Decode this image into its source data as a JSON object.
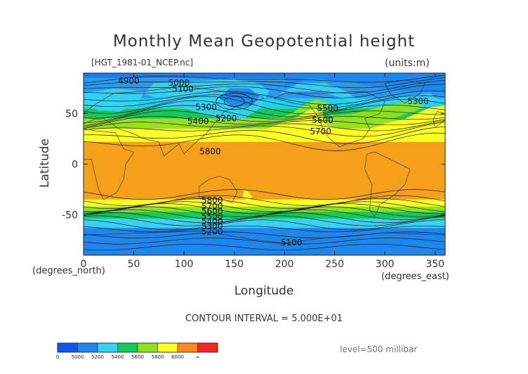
{
  "chart_data": {
    "type": "heatmap",
    "title": "Monthly Mean Geopotential height",
    "file_label": "[HGT_1981-01_NCEP.nc]",
    "units_label": "(units:m)",
    "xlabel": "Longitude",
    "ylabel": "Latitude",
    "xlabel_unit": "(degrees_east)",
    "ylabel_unit": "(degrees_north)",
    "xlim": [
      0,
      360
    ],
    "ylim": [
      -90,
      90
    ],
    "x_ticks": [
      0,
      50,
      100,
      150,
      200,
      250,
      300,
      350
    ],
    "y_ticks": [
      50,
      0,
      -50
    ],
    "contour_interval_text": "CONTOUR INTERVAL = 5.000E+01",
    "level_text": "level=500 millibar",
    "contour_labels": [
      {
        "text": "4900",
        "lon": 45,
        "lat": 82
      },
      {
        "text": "5000",
        "lon": 95,
        "lat": 80
      },
      {
        "text": "5100",
        "lon": 99,
        "lat": 74
      },
      {
        "text": "5300",
        "lon": 122,
        "lat": 56
      },
      {
        "text": "5200",
        "lon": 142,
        "lat": 45
      },
      {
        "text": "5400",
        "lon": 114,
        "lat": 42
      },
      {
        "text": "5800",
        "lon": 126,
        "lat": 12
      },
      {
        "text": "5500",
        "lon": 243,
        "lat": 55
      },
      {
        "text": "5600",
        "lon": 238,
        "lat": 43
      },
      {
        "text": "5700",
        "lon": 236,
        "lat": 32
      },
      {
        "text": "5300",
        "lon": 333,
        "lat": 62
      },
      {
        "text": "5800",
        "lon": 128,
        "lat": -36
      },
      {
        "text": "5700",
        "lon": 128,
        "lat": -42
      },
      {
        "text": "5600",
        "lon": 128,
        "lat": -47
      },
      {
        "text": "5500",
        "lon": 128,
        "lat": -52
      },
      {
        "text": "5400",
        "lon": 128,
        "lat": -57
      },
      {
        "text": "5300",
        "lon": 128,
        "lat": -62
      },
      {
        "text": "5200",
        "lon": 128,
        "lat": -67
      },
      {
        "text": "5100",
        "lon": 207,
        "lat": -78
      }
    ],
    "legend": {
      "labels": [
        "0",
        "5000",
        "5200",
        "5400",
        "5600",
        "5800",
        "6000",
        "∞"
      ],
      "colors": [
        "#0f55ef",
        "#1e87ee",
        "#36d2f2",
        "#16c95c",
        "#8ee21f",
        "#ffff22",
        "#ff8b1e",
        "#ff2222"
      ]
    },
    "bands": [
      {
        "color": "#1a7ef0",
        "from_lat": 90,
        "to_lat": 85
      },
      {
        "color": "#2a9aee",
        "from_lat": 85,
        "to_lat": 65
      },
      {
        "color": "#1fd0f3",
        "from_lat": 65,
        "to_lat": 55
      },
      {
        "color": "#18c75b",
        "from_lat": 55,
        "to_lat": 45
      },
      {
        "color": "#96e020",
        "from_lat": 45,
        "to_lat": 35
      },
      {
        "color": "#ffff26",
        "from_lat": 35,
        "to_lat": 22
      },
      {
        "color": "#f5a01a",
        "from_lat": 22,
        "to_lat": -35
      },
      {
        "color": "#ffff26",
        "from_lat": -35,
        "to_lat": -42
      },
      {
        "color": "#8ee21f",
        "from_lat": -42,
        "to_lat": -47
      },
      {
        "color": "#16c95c",
        "from_lat": -47,
        "to_lat": -54
      },
      {
        "color": "#36d2f2",
        "from_lat": -54,
        "to_lat": -63
      },
      {
        "color": "#1e87ee",
        "from_lat": -63,
        "to_lat": -90
      }
    ]
  }
}
